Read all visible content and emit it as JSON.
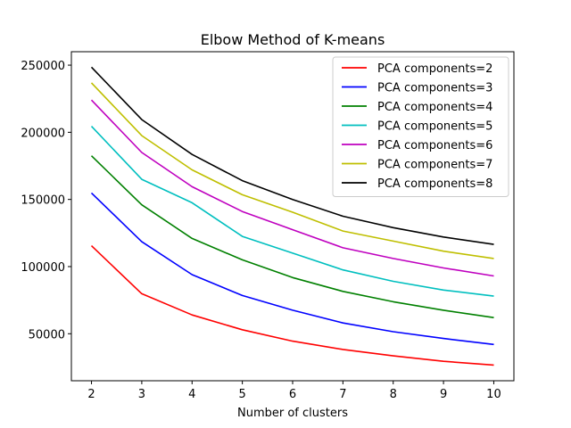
{
  "chart_data": {
    "type": "line",
    "title": "Elbow Method of K-means",
    "xlabel": "Number of clusters",
    "ylabel": "",
    "x": [
      2,
      3,
      4,
      5,
      6,
      7,
      8,
      9,
      10
    ],
    "xlim": [
      1.6,
      10.4
    ],
    "ylim": [
      15000,
      260000
    ],
    "xticks": [
      2,
      3,
      4,
      5,
      6,
      7,
      8,
      9,
      10
    ],
    "yticks": [
      50000,
      100000,
      150000,
      200000,
      250000
    ],
    "grid": false,
    "legend_position": "top-right",
    "series": [
      {
        "name": "PCA components=2",
        "color": "#ff0000",
        "values": [
          115500,
          79800,
          64000,
          53000,
          44500,
          38300,
          33500,
          29500,
          26700
        ]
      },
      {
        "name": "PCA components=3",
        "color": "#0000ff",
        "values": [
          154800,
          118500,
          94000,
          78500,
          67500,
          58000,
          51500,
          46500,
          42000
        ]
      },
      {
        "name": "PCA components=4",
        "color": "#008000",
        "values": [
          182500,
          146000,
          121000,
          105000,
          91800,
          81500,
          73800,
          67500,
          62000
        ]
      },
      {
        "name": "PCA components=5",
        "color": "#00bfbf",
        "values": [
          204500,
          165000,
          147500,
          122500,
          110000,
          97500,
          89000,
          82500,
          78000
        ]
      },
      {
        "name": "PCA components=6",
        "color": "#bf00bf",
        "values": [
          224000,
          185000,
          159500,
          141000,
          127500,
          114000,
          106000,
          99000,
          93000
        ]
      },
      {
        "name": "PCA components=7",
        "color": "#bfbf00",
        "values": [
          236800,
          197500,
          172000,
          153500,
          140500,
          126500,
          119000,
          111500,
          106000
        ]
      },
      {
        "name": "PCA components=8",
        "color": "#000000",
        "values": [
          248500,
          209500,
          183500,
          164000,
          150000,
          137500,
          129000,
          122000,
          116500
        ]
      }
    ]
  }
}
